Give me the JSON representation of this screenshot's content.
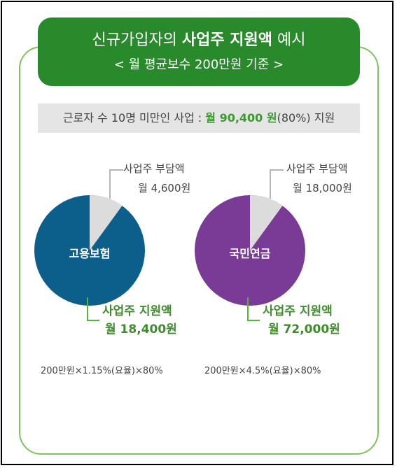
{
  "banner": {
    "title_prefix": "신규가입자의 ",
    "title_bold": "사업주 지원액",
    "title_suffix": " 예시",
    "subtitle": "< 월 평균보수 200만원 기준 >"
  },
  "summary": {
    "prefix": "근로자 수 10명 미만인 사업 : ",
    "amount": "월 90,400 원",
    "suffix": "(80%) 지원"
  },
  "colors": {
    "banner_green": "#288a2b",
    "employment_insurance": "#0c5f8a",
    "national_pension": "#7a3b96",
    "employer_share": "#dcdcdc",
    "highlight_green": "#3a9a2e"
  },
  "left": {
    "name": "고용보험",
    "burden_title": "사업주 부담액",
    "burden_value": "월 4,600원",
    "support_title": "사업주 지원액",
    "support_value": "월 18,400원",
    "formula": "200만원×1.15%(요율)×80%",
    "support_fraction": 0.8,
    "burden_fraction": 0.2
  },
  "right": {
    "name": "국민연금",
    "burden_title": "사업주 부담액",
    "burden_value": "월 18,000원",
    "support_title": "사업주 지원액",
    "support_value": "월 72,000원",
    "formula": "200만원×4.5%(요율)×80%",
    "support_fraction": 0.8,
    "burden_fraction": 0.2
  }
}
